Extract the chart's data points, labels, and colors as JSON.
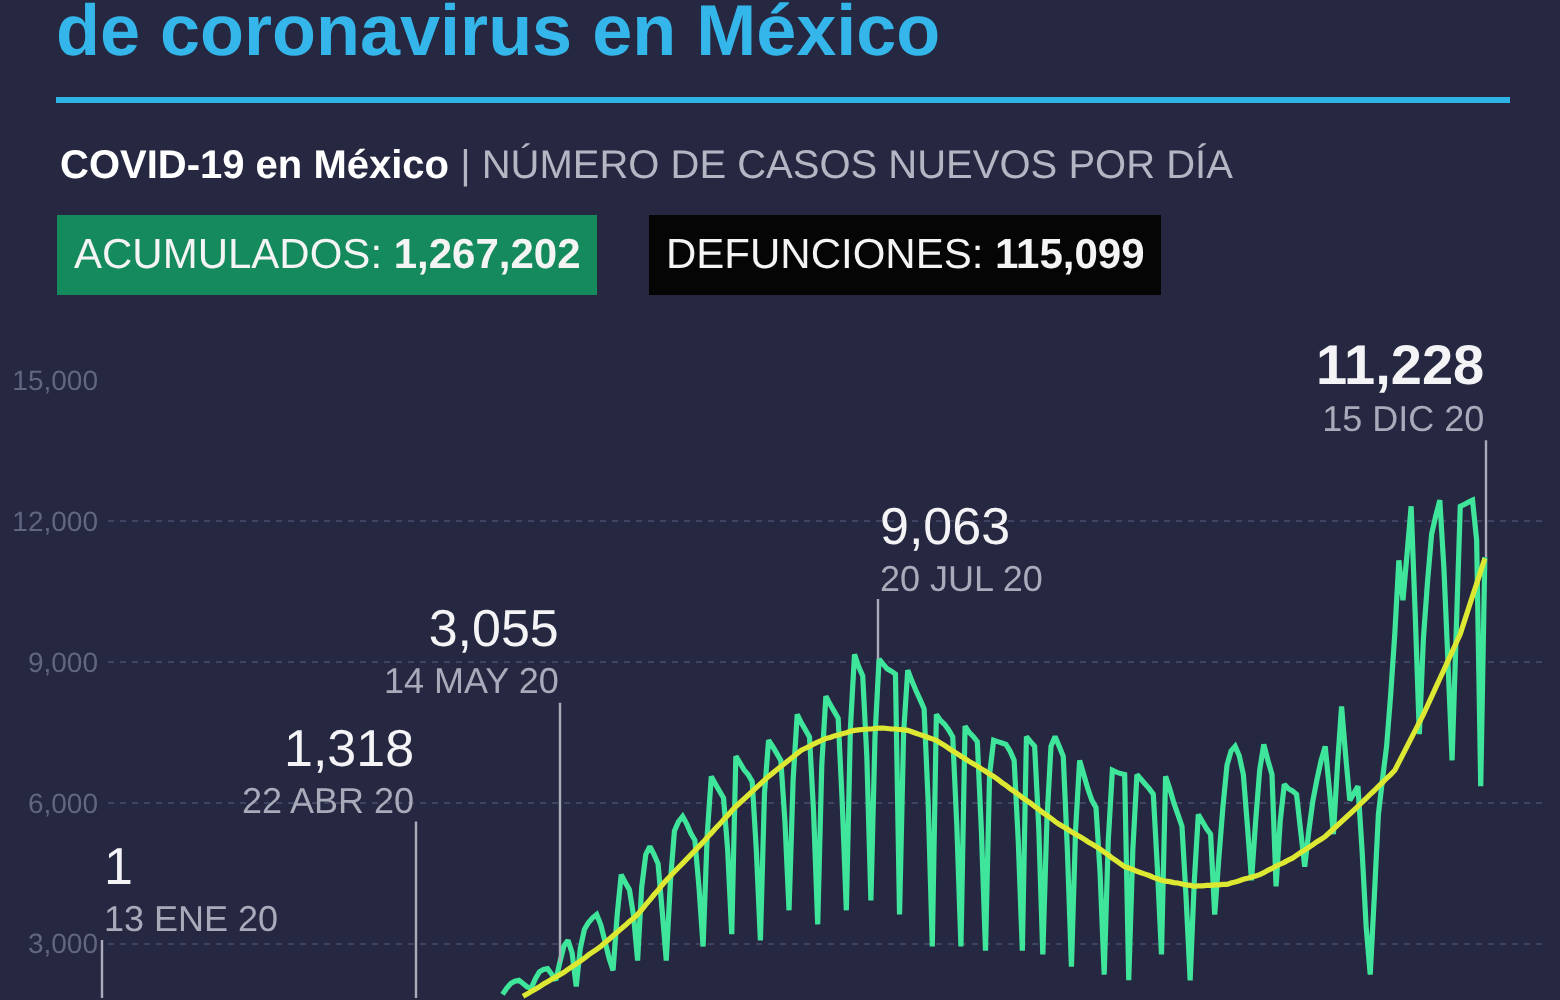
{
  "chart_data": {
    "type": "line",
    "title": "de coronavirus en México",
    "subtitle": "COVID-19 en México | NÚMERO DE CASOS NUEVOS POR DÍA",
    "categories": [
      null,
      null,
      null,
      null,
      null,
      null,
      null,
      null,
      null,
      null,
      null,
      null,
      null,
      null,
      null,
      null,
      null,
      null,
      null,
      null,
      null,
      null,
      null,
      null,
      null,
      null,
      null,
      null,
      null,
      null,
      null,
      null,
      null,
      null,
      null,
      null,
      null,
      null,
      null,
      null,
      null,
      null,
      null,
      null,
      null,
      null,
      null,
      null,
      null,
      null,
      null,
      null,
      null,
      null,
      null,
      null,
      null,
      null,
      null,
      null,
      null,
      null,
      null,
      null,
      null,
      null,
      null,
      null,
      null,
      null,
      null,
      null,
      null,
      null,
      null,
      null,
      null,
      null,
      null,
      null,
      null,
      null,
      null,
      null,
      null,
      null,
      null,
      null,
      null,
      null,
      null,
      null,
      null,
      null,
      null,
      null,
      null,
      null,
      null,
      null,
      null,
      null,
      null,
      null,
      null,
      null,
      null,
      null,
      null,
      null,
      null,
      null,
      null,
      null,
      null,
      null,
      null,
      null,
      null,
      null,
      null,
      null,
      null,
      null,
      null,
      null,
      null,
      null,
      null,
      null,
      null,
      null,
      null,
      null,
      null,
      null,
      null,
      null,
      null,
      null,
      null,
      null,
      null,
      null,
      null,
      null,
      null,
      null,
      null,
      null,
      null,
      null,
      null,
      null,
      null,
      null,
      null,
      null,
      null,
      null,
      null,
      null,
      null,
      null,
      null,
      null,
      null,
      null,
      null,
      null,
      null,
      null,
      null,
      null,
      null,
      null,
      null,
      null,
      null,
      null,
      null,
      null,
      null,
      null,
      null,
      null,
      null,
      null,
      null,
      null,
      null,
      null,
      null,
      null,
      null,
      null,
      null,
      null,
      null,
      null,
      null,
      null,
      null,
      null,
      null,
      null,
      null,
      null,
      null,
      null,
      null,
      null,
      null,
      null,
      null,
      null,
      null,
      null,
      null,
      null,
      null,
      null,
      null,
      null,
      null,
      null,
      null,
      null,
      null,
      null,
      null,
      null,
      null,
      null,
      null,
      null,
      null,
      null,
      null,
      null,
      null
    ],
    "ylim": [
      1800,
      15000
    ],
    "yticks": [
      {
        "value": 3000,
        "label": "3,000"
      },
      {
        "value": 6000,
        "label": "6,000"
      },
      {
        "value": 9000,
        "label": "9,000"
      },
      {
        "value": 12000,
        "label": "12,000"
      },
      {
        "value": 15000,
        "label": "15,000"
      }
    ],
    "grid": "y",
    "tick_labels": "y",
    "series": [
      {
        "color": "#3fe59a",
        "values": [
          1920,
          2050,
          2150,
          2200,
          2220,
          2150,
          2080,
          2050,
          2250,
          2400,
          2450,
          2470,
          2350,
          2220,
          2600,
          2950,
          3070,
          2800,
          2090,
          2900,
          3300,
          3450,
          3550,
          3620,
          3400,
          3060,
          2700,
          2430,
          3600,
          4470,
          4300,
          4150,
          3600,
          2640,
          4200,
          4900,
          5070,
          4900,
          4700,
          3700,
          2640,
          4300,
          5400,
          5600,
          5710,
          5550,
          5350,
          5200,
          4200,
          2940,
          5300,
          6560,
          6400,
          6250,
          6100,
          5000,
          3200,
          6990,
          6850,
          6700,
          6600,
          6450,
          5000,
          3070,
          6200,
          7330,
          7200,
          7050,
          6900,
          5600,
          3710,
          6500,
          7880,
          7700,
          7550,
          7400,
          5800,
          3410,
          6800,
          8270,
          8100,
          7950,
          7800,
          6000,
          3710,
          7600,
          9160,
          8900,
          8700,
          7000,
          3920,
          7400,
          9060,
          8950,
          8850,
          8800,
          8740,
          3620,
          7500,
          8820,
          8600,
          8390,
          8200,
          8000,
          6000,
          2940,
          7880,
          7750,
          7670,
          7550,
          7400,
          5500,
          2940,
          7630,
          7500,
          7410,
          7300,
          5400,
          2850,
          6600,
          7330,
          7300,
          7270,
          7240,
          7100,
          6900,
          5200,
          2850,
          7410,
          7300,
          7200,
          5500,
          2770,
          5600,
          7200,
          7410,
          7200,
          6990,
          5000,
          2510,
          5400,
          6900,
          6600,
          6300,
          6050,
          5900,
          4500,
          2340,
          5200,
          6690,
          6650,
          6620,
          6600,
          2220,
          5000,
          6600,
          6500,
          6400,
          6300,
          6180,
          4600,
          2770,
          6560,
          6300,
          6000,
          5750,
          5500,
          4000,
          2220,
          4300,
          5750,
          5600,
          5450,
          5330,
          3620,
          4800,
          5900,
          6800,
          7100,
          7200,
          7000,
          6600,
          5500,
          4350,
          5600,
          6700,
          7240,
          6900,
          6600,
          4220,
          5600,
          6390,
          6300,
          6250,
          6180,
          5400,
          4640,
          5400,
          6050,
          6500,
          6900,
          7200,
          6300,
          5330,
          6800,
          8050,
          7000,
          6050,
          6200,
          6350,
          5000,
          3370,
          2340,
          4000,
          5750,
          6500,
          7200,
          8300,
          9590,
          11160,
          10310,
          11300,
          12310,
          10000,
          7460,
          9500,
          10700,
          11720,
          12100,
          12440,
          11000,
          9000,
          6900,
          9600,
          12310,
          12350,
          12400,
          12440,
          11590,
          6350,
          11230
        ]
      },
      {
        "type": "line",
        "color": "#dde833",
        "values": [
          null,
          null,
          null,
          null,
          null,
          1880,
          1930,
          1980,
          2030,
          2080,
          2140,
          2190,
          2240,
          2290,
          2340,
          2390,
          2450,
          2510,
          2570,
          2630,
          2690,
          2760,
          2820,
          2880,
          2940,
          3020,
          3090,
          3170,
          3240,
          3320,
          3390,
          3470,
          3540,
          3620,
          3720,
          3830,
          3930,
          4040,
          4140,
          4250,
          4350,
          4440,
          4530,
          4620,
          4710,
          4800,
          4890,
          4980,
          5070,
          5160,
          5260,
          5350,
          5450,
          5540,
          5640,
          5730,
          5830,
          5920,
          6000,
          6080,
          6160,
          6240,
          6320,
          6400,
          6480,
          6560,
          6630,
          6700,
          6770,
          6840,
          6910,
          6980,
          7050,
          7120,
          7160,
          7200,
          7250,
          7290,
          7330,
          7370,
          7390,
          7420,
          7440,
          7470,
          7490,
          7520,
          7540,
          7550,
          7560,
          7570,
          7570,
          7580,
          7590,
          7590,
          7580,
          7570,
          7570,
          7560,
          7550,
          7540,
          7510,
          7480,
          7450,
          7420,
          7390,
          7360,
          7330,
          7270,
          7220,
          7160,
          7100,
          7050,
          6990,
          6940,
          6880,
          6830,
          6780,
          6720,
          6670,
          6610,
          6560,
          6500,
          6430,
          6370,
          6300,
          6240,
          6180,
          6110,
          6050,
          5990,
          5920,
          5860,
          5790,
          5730,
          5670,
          5600,
          5540,
          5490,
          5440,
          5380,
          5330,
          5280,
          5230,
          5170,
          5120,
          5070,
          5010,
          4950,
          4890,
          4820,
          4760,
          4700,
          4640,
          4610,
          4580,
          4540,
          4510,
          4480,
          4450,
          4410,
          4380,
          4350,
          4330,
          4320,
          4300,
          4290,
          4270,
          4250,
          4240,
          4220,
          4230,
          4230,
          4240,
          4240,
          4250,
          4250,
          4260,
          4260,
          4290,
          4310,
          4340,
          4370,
          4390,
          4420,
          4440,
          4470,
          4510,
          4560,
          4600,
          4650,
          4690,
          4730,
          4780,
          4820,
          4880,
          4940,
          4990,
          5050,
          5110,
          5170,
          5220,
          5280,
          5360,
          5440,
          5520,
          5600,
          5680,
          5760,
          5840,
          5920,
          6010,
          6090,
          6180,
          6260,
          6350,
          6430,
          6520,
          6600,
          6690,
          6860,
          7030,
          7200,
          7370,
          7540,
          7710,
          7880,
          8070,
          8260,
          8450,
          8640,
          8830,
          9020,
          9210,
          9400,
          9590,
          9860,
          10130,
          10400,
          10660,
          10930,
          11200
        ]
      }
    ],
    "annotations": [
      "ACUMULADOS: 1,267,202",
      "DEFUNCIONES: 115,099",
      "1\n13 ENE 20",
      "1,318\n22 ABR 20",
      "3,055\n14 MAY 20",
      "9,063\n20 JUL 20",
      "11,228\n15 DIC 20"
    ]
  }
}
